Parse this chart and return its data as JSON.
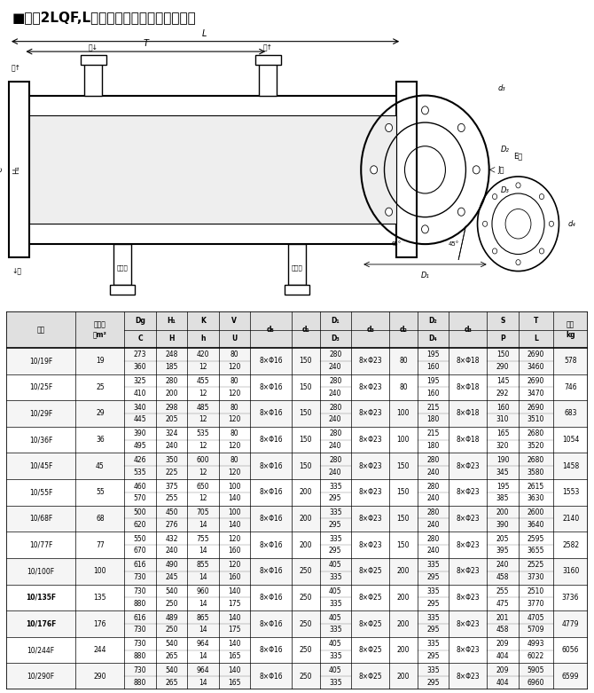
{
  "title": "■八、2LQF,L型冷卻器尺寸示意圖及尺寸表",
  "header_row1": [
    "型號",
    "換熱面\n積m²",
    "Dg",
    "H₁",
    "K",
    "V",
    "d₅",
    "d₁",
    "D₁",
    "d₃",
    "d₂",
    "D₂",
    "d₃",
    "S",
    "T",
    "重量\nkg"
  ],
  "header_row2": [
    "",
    "",
    "C",
    "H",
    "h",
    "U",
    "",
    "",
    "D₃",
    "",
    "",
    "D₄",
    "",
    "P",
    "L",
    ""
  ],
  "col_headers_top": [
    "型號",
    "換熱面\n積m²",
    "Dg",
    "H₁",
    "K",
    "V",
    "d₅",
    "d₁",
    "D₁",
    "d₃",
    "d₂",
    "D₂",
    "d₃",
    "S",
    "T",
    "重量\nkg"
  ],
  "col_headers_bot": [
    "",
    "",
    "C",
    "H",
    "h",
    "U",
    "",
    "",
    "D₃",
    "",
    "",
    "D₄",
    "",
    "P",
    "L",
    ""
  ],
  "rows": [
    [
      "10/19F",
      "19",
      "273\n360",
      "248\n185",
      "420\n12",
      "80\n120",
      "8×Φ16",
      "150",
      "280\n240",
      "8×Φ23",
      "80",
      "195\n160",
      "8×Φ18",
      "150\n290",
      "2690\n3460",
      "578"
    ],
    [
      "10/25F",
      "25",
      "325\n410",
      "280\n200",
      "455\n12",
      "80\n120",
      "8×Φ16",
      "150",
      "280\n240",
      "8×Φ23",
      "80",
      "195\n160",
      "8×Φ18",
      "145\n292",
      "2690\n3470",
      "746"
    ],
    [
      "10/29F",
      "29",
      "340\n445",
      "298\n205",
      "485\n12",
      "80\n120",
      "8×Φ16",
      "150",
      "280\n240",
      "8×Φ23",
      "100",
      "215\n180",
      "8×Φ18",
      "160\n310",
      "2690\n3510",
      "683"
    ],
    [
      "10/36F",
      "36",
      "390\n495",
      "324\n240",
      "535\n12",
      "80\n120",
      "8×Φ16",
      "150",
      "280\n240",
      "8×Φ23",
      "100",
      "215\n180",
      "8×Φ18",
      "165\n320",
      "2680\n3520",
      "1054"
    ],
    [
      "10/45F",
      "45",
      "426\n535",
      "350\n225",
      "600\n12",
      "80\n120",
      "8×Φ16",
      "150",
      "280\n240",
      "8×Φ23",
      "150",
      "280\n240",
      "8×Φ23",
      "190\n345",
      "2680\n3580",
      "1458"
    ],
    [
      "10/55F",
      "55",
      "460\n570",
      "375\n255",
      "650\n12",
      "100\n140",
      "8×Φ16",
      "200",
      "335\n295",
      "8×Φ23",
      "150",
      "280\n240",
      "8×Φ23",
      "195\n385",
      "2615\n3630",
      "1553"
    ],
    [
      "10/68F",
      "68",
      "500\n620",
      "450\n276",
      "705\n14",
      "100\n140",
      "8×Φ16",
      "200",
      "335\n295",
      "8×Φ23",
      "150",
      "280\n240",
      "8×Φ23",
      "200\n390",
      "2600\n3640",
      "2140"
    ],
    [
      "10/77F",
      "77",
      "550\n670",
      "432\n240",
      "755\n14",
      "120\n160",
      "8×Φ16",
      "200",
      "335\n295",
      "8×Φ23",
      "150",
      "280\n240",
      "8×Φ23",
      "205\n395",
      "2595\n3655",
      "2582"
    ],
    [
      "10/100F",
      "100",
      "616\n730",
      "490\n245",
      "855\n14",
      "120\n160",
      "8×Φ16",
      "250",
      "405\n335",
      "8×Φ25",
      "200",
      "335\n295",
      "8×Φ23",
      "240\n458",
      "2525\n3730",
      "3160"
    ],
    [
      "10/135F",
      "135",
      "730\n880",
      "540\n250",
      "960\n14",
      "140\n175",
      "8×Φ16",
      "250",
      "405\n335",
      "8×Φ25",
      "200",
      "335\n295",
      "8×Φ23",
      "255\n475",
      "2510\n3770",
      "3736"
    ],
    [
      "10/176F",
      "176",
      "616\n730",
      "489\n250",
      "865\n14",
      "140\n175",
      "8×Φ16",
      "250",
      "405\n335",
      "8×Φ25",
      "200",
      "335\n295",
      "8×Φ23",
      "201\n458",
      "4705\n5709",
      "4779"
    ],
    [
      "10/244F",
      "244",
      "730\n880",
      "540\n265",
      "964\n14",
      "140\n165",
      "8×Φ16",
      "250",
      "405\n335",
      "8×Φ25",
      "200",
      "335\n295",
      "8×Φ23",
      "209\n404",
      "4993\n6022",
      "6056"
    ],
    [
      "10/290F",
      "290",
      "730\n880",
      "540\n265",
      "964\n14",
      "140\n165",
      "8×Φ16",
      "250",
      "405\n335",
      "8×Φ25",
      "200",
      "335\n295",
      "8×Φ23",
      "209\n404",
      "5905\n6960",
      "6599"
    ]
  ],
  "bg_color": "#ffffff",
  "header_bg": "#d0d0d0",
  "line_color": "#000000",
  "bold_rows": [
    "10/135F",
    "10/176F"
  ],
  "diagram_placeholder": true
}
